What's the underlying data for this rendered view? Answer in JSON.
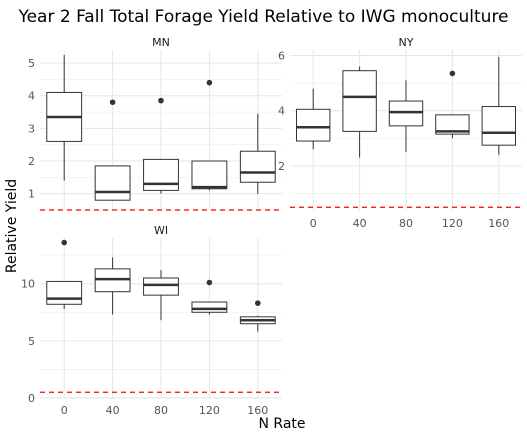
{
  "chart_data": {
    "type": "box",
    "title": "Year 2 Fall Total Forage Yield Relative to IWG monoculture",
    "xlabel": "N Rate",
    "ylabel": "Relative Yield",
    "categories": [
      "0",
      "40",
      "80",
      "120",
      "160"
    ],
    "reference_line": {
      "y": 0.5,
      "style": "dashed",
      "color": "#ff0000"
    },
    "grid": true,
    "box_color": "#333333",
    "facets": [
      {
        "name": "MN",
        "ylim": [
          0.5,
          5.4
        ],
        "yticks": [
          1,
          2,
          3,
          4,
          5
        ],
        "show_x_ticks": false,
        "boxes": [
          {
            "category": "0",
            "lower_whisker": 1.4,
            "q1": 2.6,
            "median": 3.35,
            "q3": 4.1,
            "upper_whisker": 5.25,
            "outliers": []
          },
          {
            "category": "40",
            "lower_whisker": 0.8,
            "q1": 0.8,
            "median": 1.05,
            "q3": 1.85,
            "upper_whisker": 1.85,
            "outliers": [
              3.8
            ]
          },
          {
            "category": "80",
            "lower_whisker": 1.0,
            "q1": 1.1,
            "median": 1.3,
            "q3": 2.05,
            "upper_whisker": 2.05,
            "outliers": [
              3.85
            ]
          },
          {
            "category": "120",
            "lower_whisker": 1.1,
            "q1": 1.15,
            "median": 1.2,
            "q3": 2.0,
            "upper_whisker": 2.0,
            "outliers": [
              4.4
            ]
          },
          {
            "category": "160",
            "lower_whisker": 1.0,
            "q1": 1.35,
            "median": 1.65,
            "q3": 2.3,
            "upper_whisker": 3.45,
            "outliers": []
          }
        ]
      },
      {
        "name": "NY",
        "ylim": [
          0.4,
          6.2
        ],
        "yticks": [
          2,
          4,
          6
        ],
        "show_x_ticks": true,
        "boxes": [
          {
            "category": "0",
            "lower_whisker": 2.6,
            "q1": 2.9,
            "median": 3.4,
            "q3": 4.05,
            "upper_whisker": 4.8,
            "outliers": []
          },
          {
            "category": "40",
            "lower_whisker": 2.3,
            "q1": 3.25,
            "median": 4.5,
            "q3": 5.45,
            "upper_whisker": 5.6,
            "outliers": []
          },
          {
            "category": "80",
            "lower_whisker": 2.5,
            "q1": 3.45,
            "median": 3.95,
            "q3": 4.35,
            "upper_whisker": 5.1,
            "outliers": []
          },
          {
            "category": "120",
            "lower_whisker": 3.0,
            "q1": 3.15,
            "median": 3.25,
            "q3": 3.85,
            "upper_whisker": 3.85,
            "outliers": [
              5.35
            ]
          },
          {
            "category": "160",
            "lower_whisker": 2.4,
            "q1": 2.75,
            "median": 3.2,
            "q3": 4.15,
            "upper_whisker": 5.95,
            "outliers": []
          }
        ]
      },
      {
        "name": "WI",
        "ylim": [
          0,
          14
        ],
        "yticks": [
          0,
          5,
          10
        ],
        "show_x_ticks": true,
        "boxes": [
          {
            "category": "0",
            "lower_whisker": 7.8,
            "q1": 8.2,
            "median": 8.7,
            "q3": 10.2,
            "upper_whisker": 10.2,
            "outliers": [
              13.6
            ]
          },
          {
            "category": "40",
            "lower_whisker": 7.3,
            "q1": 9.3,
            "median": 10.4,
            "q3": 11.3,
            "upper_whisker": 12.3,
            "outliers": []
          },
          {
            "category": "80",
            "lower_whisker": 6.8,
            "q1": 9.0,
            "median": 9.9,
            "q3": 10.5,
            "upper_whisker": 11.2,
            "outliers": []
          },
          {
            "category": "120",
            "lower_whisker": 7.3,
            "q1": 7.5,
            "median": 7.8,
            "q3": 8.4,
            "upper_whisker": 8.4,
            "outliers": [
              10.1
            ]
          },
          {
            "category": "160",
            "lower_whisker": 5.8,
            "q1": 6.5,
            "median": 6.8,
            "q3": 7.1,
            "upper_whisker": 7.2,
            "outliers": [
              8.3
            ]
          }
        ]
      }
    ]
  }
}
